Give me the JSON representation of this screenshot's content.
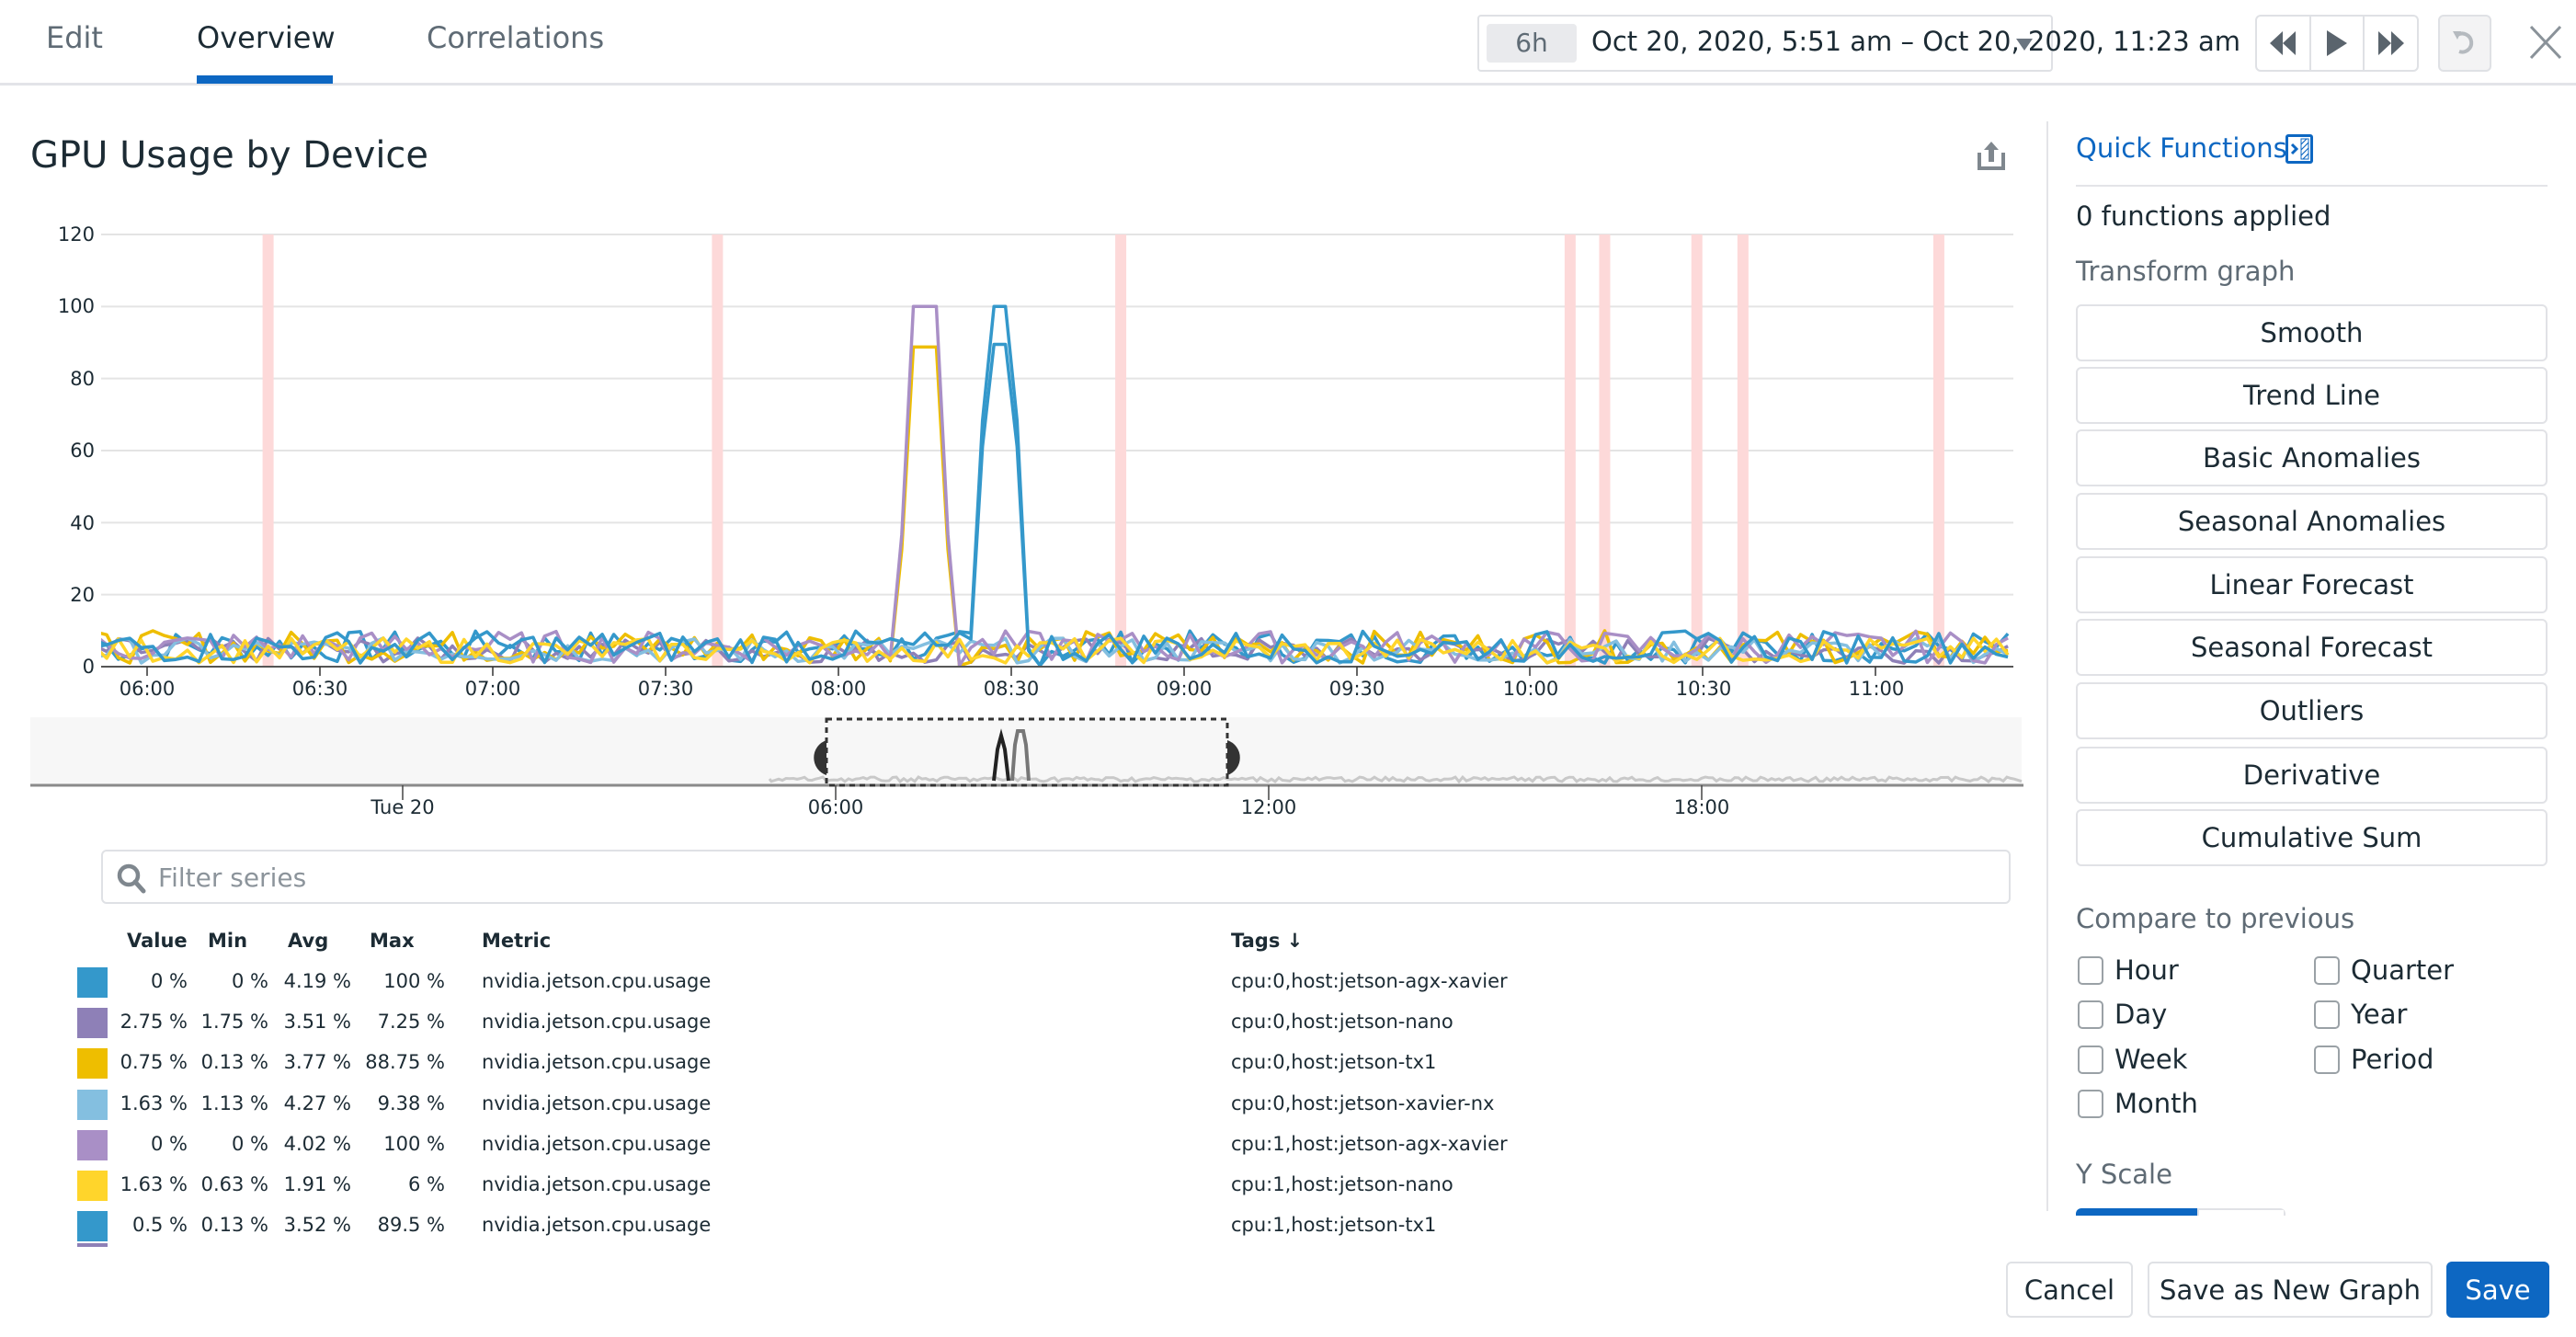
{
  "tabs": [
    {
      "label": "Edit",
      "active": false
    },
    {
      "label": "Overview",
      "active": true
    },
    {
      "label": "Correlations",
      "active": false
    }
  ],
  "timepicker": {
    "badge": "6h",
    "range": "Oct 20, 2020, 5:51 am – Oct 20, 2020, 11:23 am"
  },
  "nav_icons": [
    "rewind-icon",
    "play-icon",
    "fast-forward-icon",
    "undo-icon",
    "close-icon"
  ],
  "graph": {
    "title": "GPU Usage by Device"
  },
  "colors": {
    "accent": "#0d67c2",
    "anomaly_band": "#fdd9d9"
  },
  "chart_data": {
    "type": "line",
    "title": "GPU Usage by Device",
    "xlabel": "",
    "ylabel": "",
    "ylim": [
      0,
      120
    ],
    "yticks": [
      "120",
      "100",
      "80",
      "60",
      "40",
      "20",
      "0"
    ],
    "xticks": [
      "06:00",
      "06:30",
      "07:00",
      "07:30",
      "08:00",
      "08:30",
      "09:00",
      "09:30",
      "10:00",
      "10:30",
      "11:00"
    ],
    "grid": true,
    "anomaly_bands_at": [
      "06:21",
      "07:39",
      "08:49",
      "10:07",
      "10:13",
      "10:29",
      "10:37",
      "11:11"
    ],
    "series": [
      {
        "name": "cpu:0,host:jetson-agx-xavier",
        "color": "#3498cb",
        "peak": {
          "start": "08:23",
          "end": "08:33",
          "value": 100
        }
      },
      {
        "name": "cpu:0,host:jetson-nano",
        "color": "#8e80b7",
        "peak": null
      },
      {
        "name": "cpu:0,host:jetson-tx1",
        "color": "#eebe00",
        "peak": {
          "start": "08:10",
          "end": "08:20",
          "value": 88.75
        }
      },
      {
        "name": "cpu:0,host:jetson-xavier-nx",
        "color": "#84bfe0",
        "peak": null
      },
      {
        "name": "cpu:1,host:jetson-agx-xavier",
        "color": "#a98fc6",
        "peak": {
          "start": "08:10",
          "end": "08:20",
          "value": 100
        }
      },
      {
        "name": "cpu:1,host:jetson-nano",
        "color": "#ffd52b",
        "peak": null
      },
      {
        "name": "cpu:1,host:jetson-tx1",
        "color": "#3498cb",
        "peak": {
          "start": "08:23",
          "end": "08:33",
          "value": 89.5
        }
      }
    ],
    "baseline_range": [
      0,
      10
    ]
  },
  "minimap": {
    "labels": [
      "Tue 20",
      "06:00",
      "12:00",
      "18:00"
    ]
  },
  "filter": {
    "placeholder": "Filter series",
    "value": ""
  },
  "legend": {
    "headers": {
      "value": "Value",
      "min": "Min",
      "avg": "Avg",
      "max": "Max",
      "metric": "Metric",
      "tags": "Tags ↓"
    },
    "rows": [
      {
        "color": "#3498cb",
        "value": "0 %",
        "min": "0 %",
        "avg": "4.19 %",
        "max": "100 %",
        "metric": "nvidia.jetson.cpu.usage",
        "tags": "cpu:0,host:jetson-agx-xavier"
      },
      {
        "color": "#8e80b7",
        "value": "2.75 %",
        "min": "1.75 %",
        "avg": "3.51 %",
        "max": "7.25 %",
        "metric": "nvidia.jetson.cpu.usage",
        "tags": "cpu:0,host:jetson-nano"
      },
      {
        "color": "#eebe00",
        "value": "0.75 %",
        "min": "0.13 %",
        "avg": "3.77 %",
        "max": "88.75 %",
        "metric": "nvidia.jetson.cpu.usage",
        "tags": "cpu:0,host:jetson-tx1"
      },
      {
        "color": "#84bfe0",
        "value": "1.63 %",
        "min": "1.13 %",
        "avg": "4.27 %",
        "max": "9.38 %",
        "metric": "nvidia.jetson.cpu.usage",
        "tags": "cpu:0,host:jetson-xavier-nx"
      },
      {
        "color": "#a98fc6",
        "value": "0 %",
        "min": "0 %",
        "avg": "4.02 %",
        "max": "100 %",
        "metric": "nvidia.jetson.cpu.usage",
        "tags": "cpu:1,host:jetson-agx-xavier"
      },
      {
        "color": "#ffd52b",
        "value": "1.63 %",
        "min": "0.63 %",
        "avg": "1.91 %",
        "max": "6 %",
        "metric": "nvidia.jetson.cpu.usage",
        "tags": "cpu:1,host:jetson-nano"
      },
      {
        "color": "#3498cb",
        "value": "0.5 %",
        "min": "0.13 %",
        "avg": "3.52 %",
        "max": "89.5 %",
        "metric": "nvidia.jetson.cpu.usage",
        "tags": "cpu:1,host:jetson-tx1"
      }
    ]
  },
  "quick_functions": {
    "title": "Quick Functions",
    "applied": "0 functions applied",
    "transform_label": "Transform graph",
    "buttons": [
      "Smooth",
      "Trend Line",
      "Basic Anomalies",
      "Seasonal Anomalies",
      "Linear Forecast",
      "Seasonal Forecast",
      "Outliers",
      "Derivative",
      "Cumulative Sum"
    ],
    "compare_label": "Compare to previous",
    "compare_options": [
      {
        "label": "Hour",
        "checked": false
      },
      {
        "label": "Day",
        "checked": false
      },
      {
        "label": "Week",
        "checked": false
      },
      {
        "label": "Month",
        "checked": false
      },
      {
        "label": "Quarter",
        "checked": false
      },
      {
        "label": "Year",
        "checked": false
      },
      {
        "label": "Period",
        "checked": false
      }
    ],
    "yscale_label": "Y Scale"
  },
  "footer": {
    "cancel": "Cancel",
    "save_new": "Save as New Graph",
    "save": "Save"
  }
}
